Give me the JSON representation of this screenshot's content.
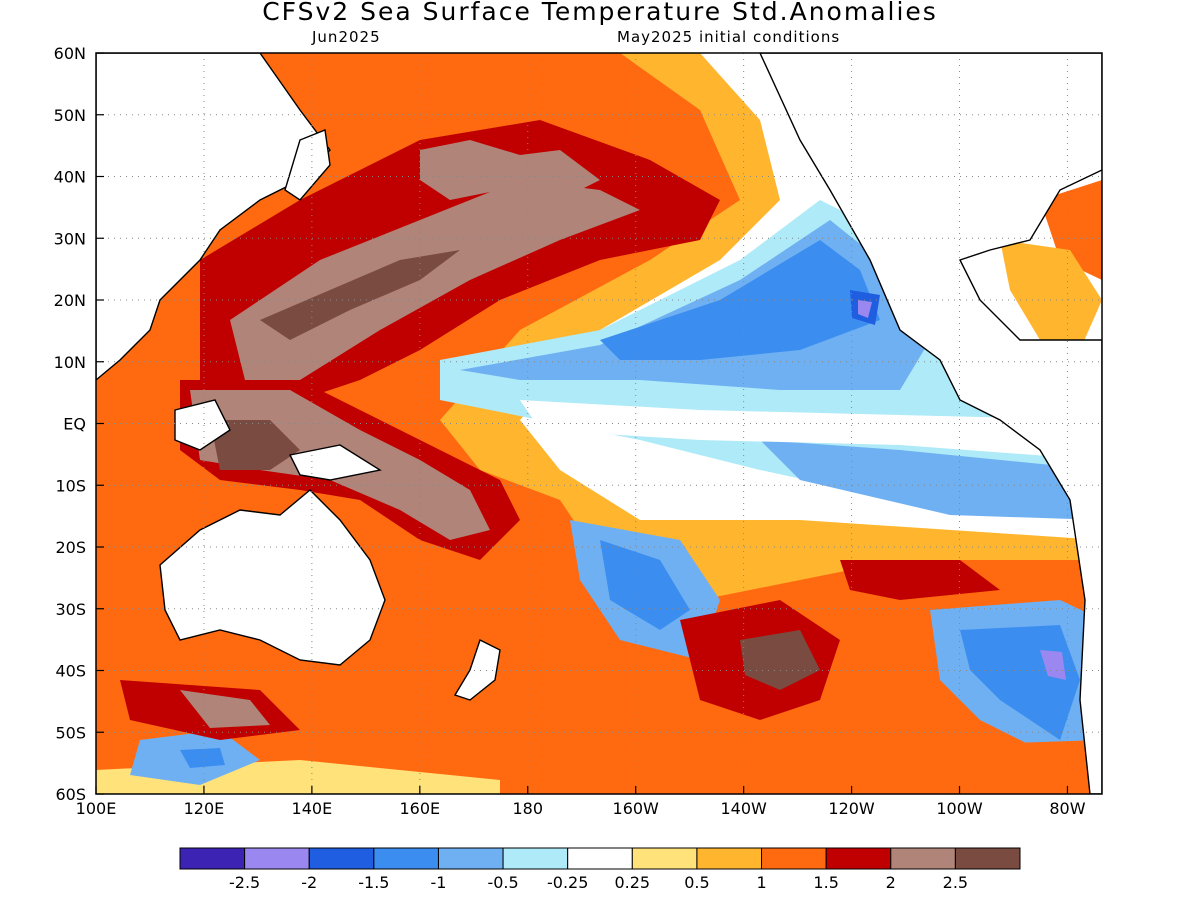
{
  "title": "CFSv2 Sea Surface Temperature Std.Anomalies",
  "subtitle_left": "Jun2025",
  "subtitle_right": "May2025 initial conditions",
  "y_ticks": [
    "60N",
    "50N",
    "40N",
    "30N",
    "20N",
    "10N",
    "EQ",
    "10S",
    "20S",
    "30S",
    "40S",
    "50S",
    "60S"
  ],
  "x_ticks": [
    "100E",
    "120E",
    "140E",
    "160E",
    "180",
    "160W",
    "140W",
    "120W",
    "100W",
    "80W"
  ],
  "legend": {
    "labels": [
      "-2.5",
      "-2",
      "-1.5",
      "-1",
      "-0.5",
      "-0.25",
      "0.25",
      "0.5",
      "1",
      "1.5",
      "2",
      "2.5"
    ],
    "colors": [
      "#3c23b4",
      "#9b87f0",
      "#1f5ee0",
      "#3b8ef0",
      "#6fb0f2",
      "#aeeaf7",
      "#ffffff",
      "#ffe27a",
      "#ffb52e",
      "#ff6a10",
      "#c00000",
      "#b08478",
      "#7a4b40"
    ]
  }
}
